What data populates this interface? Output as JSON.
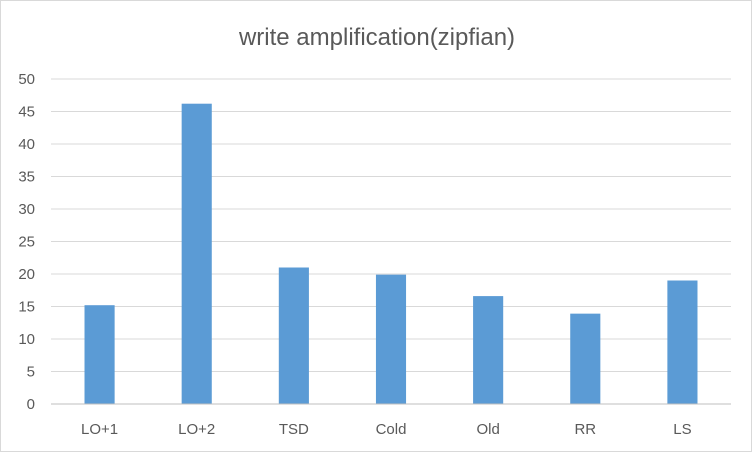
{
  "chart_data": {
    "type": "bar",
    "title": "write amplification(zipfian)",
    "categories": [
      "LO+1",
      "LO+2",
      "TSD",
      "Cold",
      "Old",
      "RR",
      "LS"
    ],
    "values": [
      15.2,
      46.2,
      21.0,
      19.9,
      16.6,
      13.9,
      19.0
    ],
    "y_ticks": [
      "0",
      "5",
      "10",
      "15",
      "20",
      "25",
      "30",
      "35",
      "40",
      "45",
      "50"
    ],
    "ylim": [
      0,
      50
    ],
    "xlabel": "",
    "ylabel": "",
    "grid": true,
    "legend": "none",
    "bar_color": "#5b9bd5"
  }
}
